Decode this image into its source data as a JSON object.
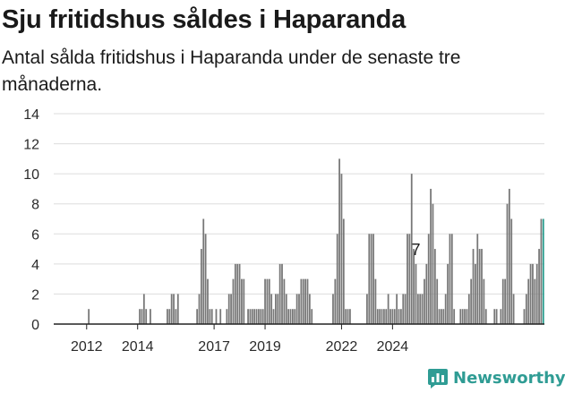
{
  "brand": {
    "name": "Newsworthy",
    "icon": "newsworthy-logo-icon",
    "color": "#2f9c94"
  },
  "colors": {
    "bar": "#777777",
    "highlight": "#2a9d8f",
    "grid": "#dddddd",
    "axis": "#222222"
  },
  "chart_data": {
    "type": "bar",
    "title": "Sju fritidshus såldes i Haparanda",
    "subtitle": "Antal sålda fritidshus i Haparanda under de senaste tre månaderna.",
    "xlabel": "",
    "ylabel": "",
    "ylim": [
      0,
      14
    ],
    "yticks": [
      0,
      2,
      4,
      6,
      8,
      10,
      12,
      14
    ],
    "xticks": [
      {
        "label": "2012",
        "month": "2012-04"
      },
      {
        "label": "2014",
        "month": "2014-04"
      },
      {
        "label": "2017",
        "month": "2017-04"
      },
      {
        "label": "2019",
        "month": "2019-04"
      },
      {
        "label": "2022",
        "month": "2022-04"
      },
      {
        "label": "2024",
        "month": "2024-04"
      }
    ],
    "grid": true,
    "annotation": {
      "label": "7",
      "month": "2025-03"
    },
    "series": [
      {
        "start": "2011-01",
        "interval": "month",
        "values": [
          0,
          0,
          0,
          0,
          0,
          0,
          0,
          0,
          0,
          0,
          0,
          0,
          0,
          0,
          0,
          0,
          1,
          0,
          0,
          0,
          0,
          0,
          0,
          0,
          0,
          0,
          0,
          0,
          0,
          0,
          0,
          0,
          0,
          0,
          0,
          0,
          0,
          0,
          0,
          0,
          1,
          1,
          2,
          1,
          0,
          1,
          0,
          0,
          0,
          0,
          0,
          0,
          0,
          1,
          1,
          2,
          2,
          1,
          2,
          0,
          0,
          0,
          0,
          0,
          0,
          0,
          0,
          1,
          2,
          5,
          7,
          6,
          3,
          1,
          1,
          0,
          1,
          0,
          1,
          0,
          0,
          1,
          2,
          2,
          3,
          4,
          4,
          4,
          3,
          3,
          0,
          1,
          1,
          1,
          1,
          1,
          1,
          1,
          1,
          3,
          3,
          3,
          2,
          1,
          2,
          2,
          4,
          4,
          3,
          2,
          1,
          1,
          1,
          1,
          2,
          2,
          3,
          3,
          3,
          3,
          2,
          1,
          0,
          0,
          0,
          0,
          0,
          0,
          0,
          0,
          0,
          2,
          3,
          6,
          11,
          10,
          7,
          1,
          1,
          1,
          0,
          0,
          0,
          0,
          0,
          0,
          0,
          2,
          6,
          6,
          6,
          3,
          1,
          1,
          1,
          1,
          1,
          2,
          1,
          1,
          1,
          2,
          1,
          1,
          2,
          2,
          6,
          6,
          10,
          5,
          4,
          2,
          2,
          2,
          3,
          4,
          6,
          9,
          8,
          5,
          3,
          1,
          1,
          1,
          2,
          4,
          6,
          6,
          1,
          0,
          0,
          1,
          1,
          1,
          1,
          2,
          3,
          5,
          4,
          6,
          5,
          5,
          3,
          1,
          0,
          0,
          0,
          1,
          1,
          0,
          1,
          3,
          3,
          8,
          9,
          7,
          2,
          0,
          0,
          0,
          0,
          1,
          2,
          3,
          4,
          4,
          3,
          4,
          5,
          7,
          7
        ]
      }
    ]
  }
}
